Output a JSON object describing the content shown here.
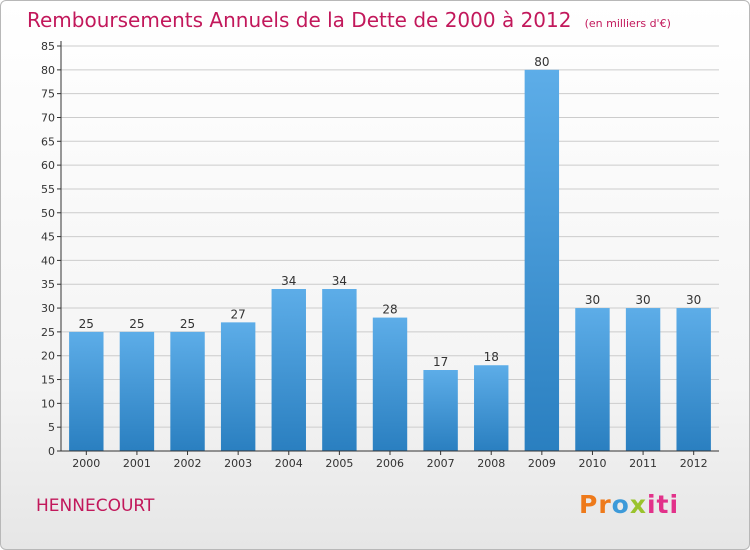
{
  "header": {
    "title": "Remboursements Annuels de la Dette de 2000 à 2012",
    "unit": "(en milliers d'€)"
  },
  "footer": {
    "town": "HENNECOURT",
    "logo_parts": [
      "Pr",
      "o",
      "x",
      "iti"
    ]
  },
  "colors": {
    "title": "#c2185b",
    "bar_top": "#5dade8",
    "bar_bottom": "#2a7fc0",
    "grid": "#cccccc"
  },
  "chart_data": {
    "type": "bar",
    "title": "Remboursements Annuels de la Dette de 2000 à 2012",
    "categories": [
      "2000",
      "2001",
      "2002",
      "2003",
      "2004",
      "2005",
      "2006",
      "2007",
      "2008",
      "2009",
      "2010",
      "2011",
      "2012"
    ],
    "values": [
      25,
      25,
      25,
      27,
      34,
      34,
      28,
      17,
      18,
      80,
      30,
      30,
      30
    ],
    "ylim": [
      0,
      85
    ],
    "yticks": [
      0,
      5,
      10,
      15,
      20,
      25,
      30,
      35,
      40,
      45,
      50,
      55,
      60,
      65,
      70,
      75,
      80,
      85
    ],
    "grid": true,
    "data_labels": true
  }
}
